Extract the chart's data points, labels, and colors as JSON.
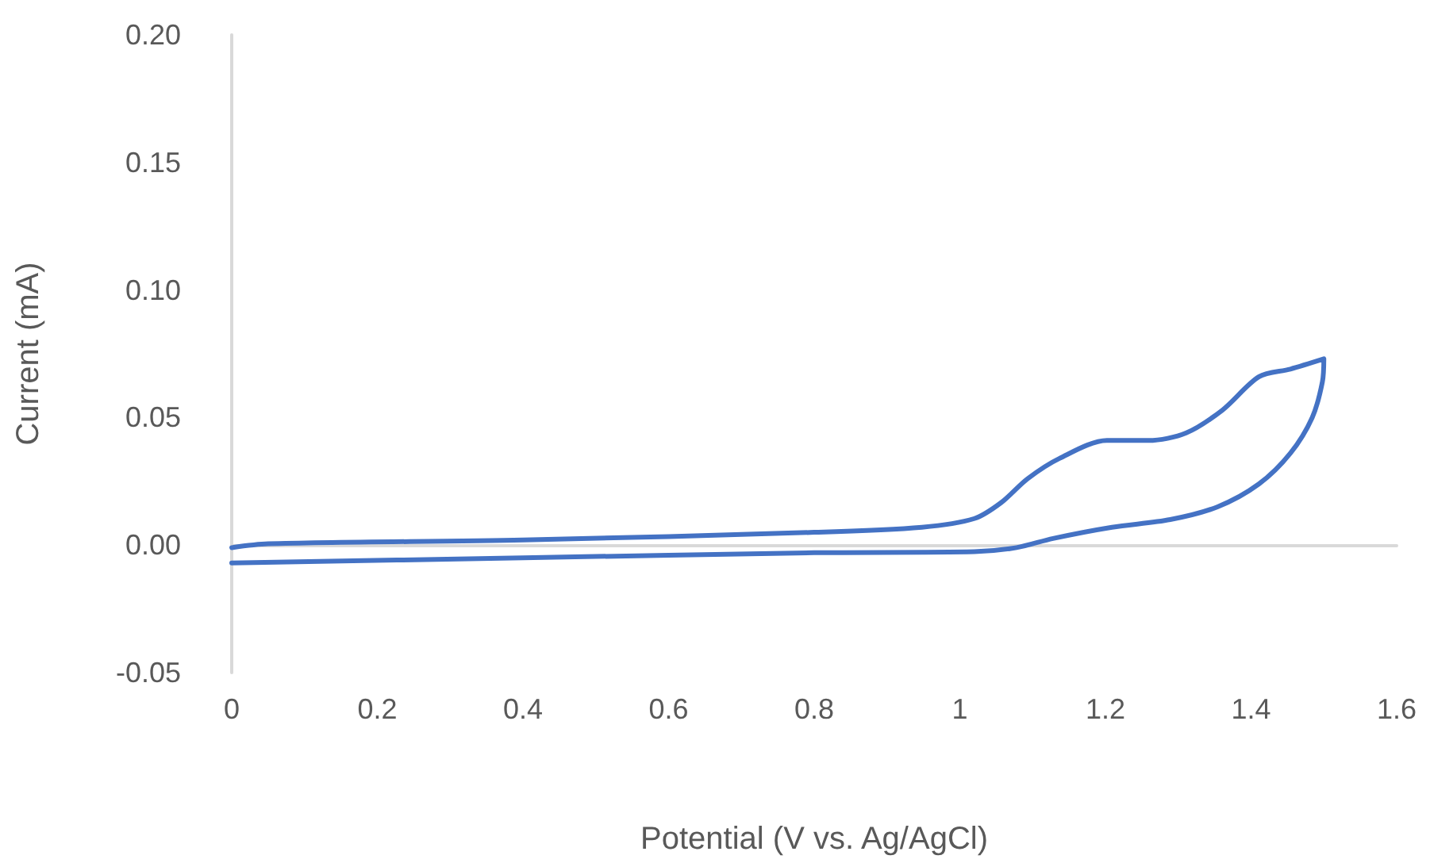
{
  "chart_data": {
    "type": "line",
    "xlabel": "Potential (V vs. Ag/AgCl)",
    "ylabel": "Current (mA)",
    "xlim": [
      0,
      1.6
    ],
    "xticks": [
      0,
      0.2,
      0.4,
      0.6,
      0.8,
      1,
      1.2,
      1.4,
      1.6
    ],
    "ylim": [
      -0.05,
      0.2
    ],
    "yticks": [
      {
        "value": -0.05,
        "label": "-0.05"
      },
      {
        "value": 0,
        "label": "0.00"
      },
      {
        "value": 0.05,
        "label": "0.05"
      },
      {
        "value": 0.1,
        "label": "0.10"
      },
      {
        "value": 0.15,
        "label": "0.15"
      },
      {
        "value": 0.2,
        "label": "0.20"
      }
    ],
    "marker": "none",
    "line_style": "solid",
    "series": [
      {
        "color": "#4472c4",
        "x": [
          0,
          0.05,
          0.4,
          0.8,
          0.948,
          1.02,
          1.057,
          1.093,
          1.137,
          1.202,
          1.259,
          1.311,
          1.361,
          1.411,
          1.454,
          1.5,
          1.498,
          1.484,
          1.454,
          1.411,
          1.354,
          1.289,
          1.209,
          1.128,
          1.078,
          1.02,
          0.8,
          0.4,
          0
        ],
        "values": [
          -0.001,
          0.0005,
          0.002,
          0.005,
          0.007,
          0.0104,
          0.0167,
          0.026,
          0.034,
          0.041,
          0.041,
          0.044,
          0.053,
          0.066,
          0.069,
          0.073,
          0.064,
          0.05,
          0.036,
          0.024,
          0.015,
          0.01,
          0.007,
          0.0026,
          -0.001,
          -0.0026,
          -0.003,
          -0.005,
          -0.007
        ]
      }
    ]
  }
}
